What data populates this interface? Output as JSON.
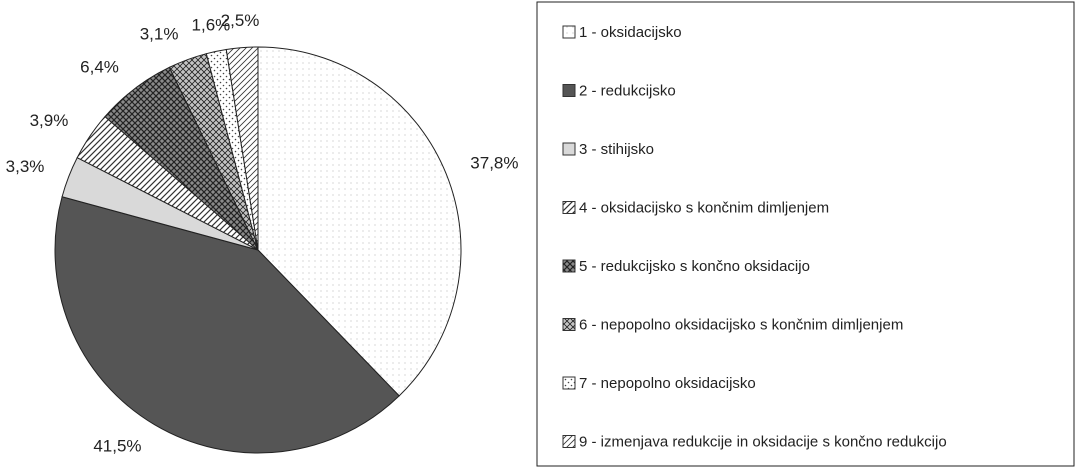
{
  "chart_data": {
    "type": "pie",
    "categories": [
      "1 - oksidacijsko",
      "2 - redukcijsko",
      "3 - stihijsko",
      "4 - oksidacijsko s končnim dimljenjem",
      "5 - redukcijsko s končno oksidacijo",
      "6 - nepopolno oksidacijsko s končnim dimljenjem",
      "7 - nepopolno oksidacijsko",
      "9 - izmenjava redukcije in oksidacije s končno redukcijo"
    ],
    "values": [
      37.8,
      41.5,
      3.3,
      3.9,
      6.4,
      3.1,
      1.6,
      2.5
    ],
    "value_labels": [
      "37,8%",
      "41,5%",
      "3,3%",
      "3,9%",
      "6,4%",
      "3,1%",
      "1,6%",
      "2,5%"
    ],
    "colors": [
      "#ffffff",
      "#555555",
      "#d9d9d9",
      "#ffffff",
      "#8a8a8a",
      "#c4c4c4",
      "#ffffff",
      "#ffffff"
    ]
  }
}
